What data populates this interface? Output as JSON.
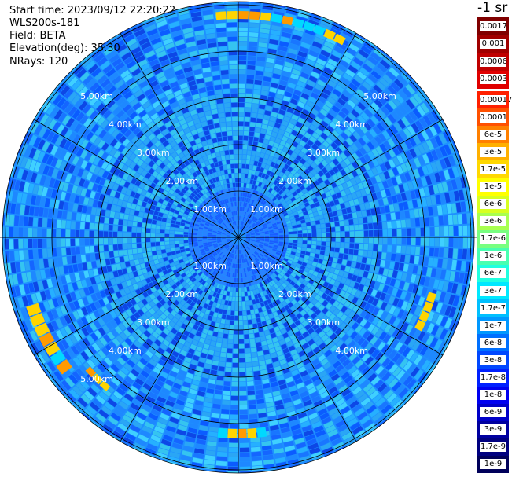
{
  "info": {
    "start_time": "Start time: 2023/09/12 22:20:22",
    "instrument": "WLS200s-181",
    "field": "Field: BETA",
    "elevation": "Elevation(deg): 35.30",
    "nrays": "NRays: 120"
  },
  "colorbar": {
    "title": "-1 sr",
    "labels": [
      "0.0017",
      "0.001",
      "0.0006",
      "0.0003",
      "0.00017",
      "0.0001",
      "6e-5",
      "3e-5",
      "1.7e-5",
      "1e-5",
      "6e-6",
      "3e-6",
      "1.7e-6",
      "1e-6",
      "6e-7",
      "3e-7",
      "1.7e-7",
      "1e-7",
      "6e-8",
      "3e-8",
      "1.7e-8",
      "1e-8",
      "6e-9",
      "3e-9",
      "1.7e-9",
      "1e-9"
    ],
    "colors": [
      "#800000",
      "#a00000",
      "#c00000",
      "#e00000",
      "#ff2000",
      "#ff5000",
      "#ff8000",
      "#ffb000",
      "#ffd800",
      "#ffff00",
      "#d8ff20",
      "#a8ff50",
      "#78ff80",
      "#48ffb0",
      "#20ffe0",
      "#00e8ff",
      "#00c0ff",
      "#0098ff",
      "#0070ff",
      "#0048ff",
      "#0020ff",
      "#0000f0",
      "#0000c8",
      "#0000a0",
      "#000080",
      "#00005a"
    ]
  },
  "range_rings": [
    "1.00km",
    "2.00km",
    "3.00km",
    "4.00km",
    "5.00km"
  ],
  "ppi": {
    "background_color": "#1e90ff",
    "near_color": "#1a6bff",
    "mid_color": "#22b4f0",
    "highlight_colors": [
      "#ffd400",
      "#ff9a00",
      "#00d8ff"
    ]
  }
}
